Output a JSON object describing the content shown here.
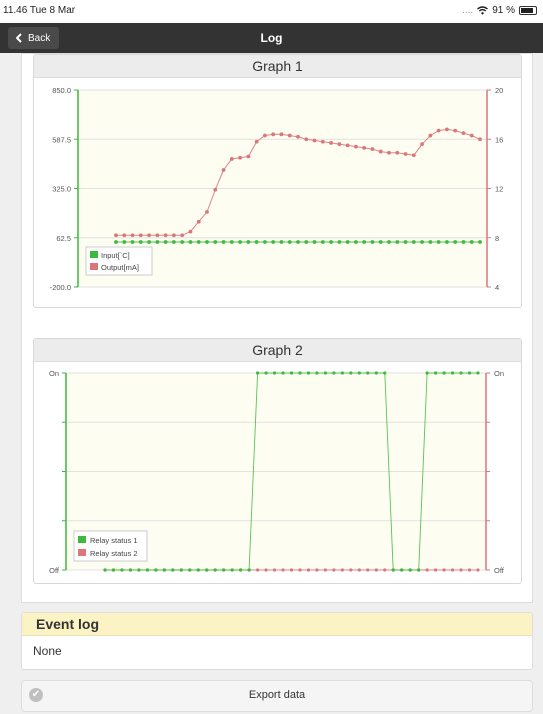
{
  "status_bar": {
    "time": "11.46  Tue 8 Mar",
    "signal": "....",
    "battery": "91 %"
  },
  "nav": {
    "back_label": "Back",
    "title": "Log"
  },
  "graph1": {
    "title": "Graph 1",
    "left_ticks": [
      "850.0",
      "587.5",
      "325.0",
      "62.5",
      "-200.0"
    ],
    "right_ticks": [
      "20",
      "16",
      "12",
      "8",
      "4"
    ],
    "legend": [
      {
        "label": "Input[`C]",
        "color": "#3cba3c"
      },
      {
        "label": "Output[mA]",
        "color": "#d9777b"
      }
    ]
  },
  "graph2": {
    "title": "Graph 2",
    "left_ticks": [
      "On",
      "Off"
    ],
    "right_ticks": [
      "On",
      "Off"
    ],
    "legend": [
      {
        "label": "Relay status 1",
        "color": "#3cba3c"
      },
      {
        "label": "Relay status 2",
        "color": "#d9777b"
      }
    ]
  },
  "chart_data": [
    {
      "type": "line",
      "title": "Graph 1",
      "ylim": [
        -200,
        850
      ],
      "y2lim": [
        4,
        20
      ],
      "x": [
        1,
        2,
        3,
        4,
        5,
        6,
        7,
        8,
        9,
        10,
        11,
        12,
        13,
        14,
        15,
        16,
        17,
        18,
        19,
        20,
        21,
        22,
        23,
        24,
        25,
        26,
        27,
        28,
        29,
        30,
        31,
        32,
        33,
        34,
        35,
        36,
        37,
        38,
        39,
        40,
        41,
        42,
        43,
        44,
        45
      ],
      "series": [
        {
          "name": "Input[`C]",
          "axis": "left",
          "values": [
            40,
            40,
            40,
            40,
            40,
            40,
            40,
            40,
            40,
            40,
            40,
            40,
            40,
            40,
            40,
            40,
            40,
            40,
            40,
            40,
            40,
            40,
            40,
            40,
            40,
            40,
            40,
            40,
            40,
            40,
            40,
            40,
            40,
            40,
            40,
            40,
            40,
            40,
            40,
            40,
            40,
            40,
            40,
            40,
            40
          ]
        },
        {
          "name": "Output[mA]",
          "axis": "right",
          "values": [
            8.2,
            8.2,
            8.2,
            8.2,
            8.2,
            8.2,
            8.2,
            8.2,
            8.2,
            8.5,
            9.3,
            10.1,
            11.9,
            13.5,
            14.4,
            14.5,
            14.6,
            15.8,
            16.3,
            16.4,
            16.4,
            16.3,
            16.2,
            16.0,
            15.9,
            15.8,
            15.7,
            15.6,
            15.5,
            15.4,
            15.3,
            15.2,
            15.0,
            14.9,
            14.9,
            14.8,
            14.7,
            15.6,
            16.3,
            16.7,
            16.8,
            16.7,
            16.5,
            16.3,
            16.0
          ]
        }
      ],
      "legend": "bottom-left",
      "grid": true
    },
    {
      "type": "line",
      "title": "Graph 2",
      "x": [
        1,
        2,
        3,
        4,
        5,
        6,
        7,
        8,
        9,
        10,
        11,
        12,
        13,
        14,
        15,
        16,
        17,
        18,
        19,
        20,
        21,
        22,
        23,
        24,
        25,
        26,
        27,
        28,
        29,
        30,
        31,
        32,
        33,
        34,
        35,
        36,
        37,
        38,
        39,
        40,
        41,
        42,
        43,
        44,
        45
      ],
      "series": [
        {
          "name": "Relay status 1",
          "values": [
            0,
            0,
            0,
            0,
            0,
            0,
            0,
            0,
            0,
            0,
            0,
            0,
            0,
            0,
            0,
            0,
            0,
            0,
            1,
            1,
            1,
            1,
            1,
            1,
            1,
            1,
            1,
            1,
            1,
            1,
            1,
            1,
            1,
            1,
            0,
            0,
            0,
            0,
            1,
            1,
            1,
            1,
            1,
            1,
            1
          ]
        },
        {
          "name": "Relay status 2",
          "values": [
            0,
            0,
            0,
            0,
            0,
            0,
            0,
            0,
            0,
            0,
            0,
            0,
            0,
            0,
            0,
            0,
            0,
            0,
            0,
            0,
            0,
            0,
            0,
            0,
            0,
            0,
            0,
            0,
            0,
            0,
            0,
            0,
            0,
            0,
            0,
            0,
            0,
            0,
            0,
            0,
            0,
            0,
            0,
            0,
            0
          ]
        }
      ],
      "y_states": [
        "Off",
        "On"
      ],
      "legend": "bottom-left",
      "grid": true
    }
  ],
  "event_log": {
    "title": "Event log",
    "body": "None"
  },
  "export": {
    "label": "Export data"
  }
}
